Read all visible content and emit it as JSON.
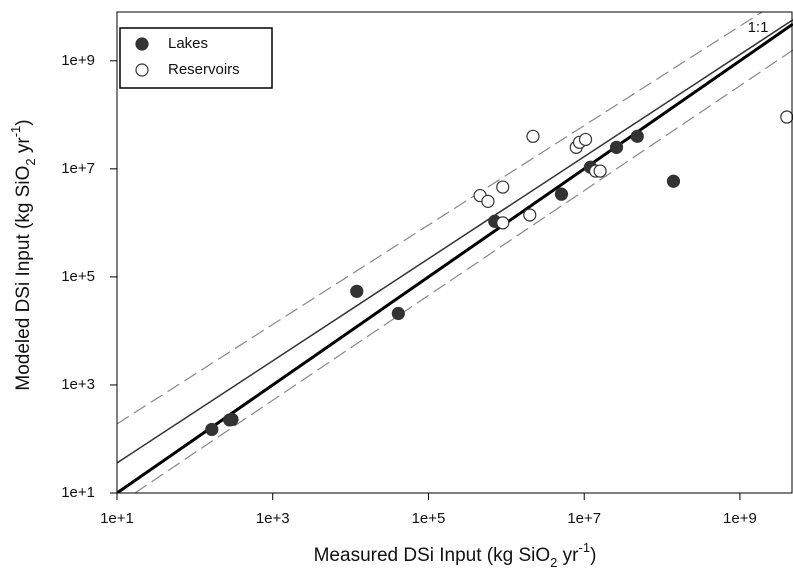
{
  "chart_data": {
    "type": "scatter",
    "xlabel": [
      "Measured DSi Input (kg SiO",
      "2",
      " yr",
      "-1",
      ")"
    ],
    "ylabel": [
      "Modeled DSi Input (kg SiO",
      "2",
      " yr",
      "-1",
      ")"
    ],
    "xscale": "log",
    "yscale": "log",
    "xlim": [
      10,
      4800000000
    ],
    "ylim": [
      10,
      8000000000
    ],
    "xticks": [
      {
        "value": 10,
        "label": "1e+1"
      },
      {
        "value": 1000,
        "label": "1e+3"
      },
      {
        "value": 100000,
        "label": "1e+5"
      },
      {
        "value": 10000000,
        "label": "1e+7"
      },
      {
        "value": 1000000000,
        "label": "1e+9"
      }
    ],
    "yticks": [
      {
        "value": 10,
        "label": "1e+1"
      },
      {
        "value": 1000,
        "label": "1e+3"
      },
      {
        "value": 100000,
        "label": "1e+5"
      },
      {
        "value": 10000000,
        "label": "1e+7"
      },
      {
        "value": 1000000000,
        "label": "1e+9"
      }
    ],
    "legend": "top-left",
    "annotations": [
      "1:1"
    ],
    "series": [
      {
        "name": "Lakes",
        "color": "#333333",
        "filled": true,
        "x": [
          165,
          280,
          300,
          12000,
          41000,
          710000,
          5100000,
          12000000,
          26000000,
          48000000,
          140000000
        ],
        "values": [
          150,
          225,
          230,
          54000,
          21000,
          1070000,
          3400000,
          10700000,
          25000000,
          40000000,
          5900000
        ]
      },
      {
        "name": "Reservoirs",
        "color": "#333333",
        "filled": false,
        "x": [
          460000,
          580000,
          900000,
          900000,
          2000000,
          2200000,
          7900000,
          8700000,
          10400000,
          14000000,
          16000000,
          4000000000
        ],
        "values": [
          3200000,
          2500000,
          4600000,
          1000000,
          1400000,
          40000000,
          25000000,
          31000000,
          35000000,
          9100000,
          9100000,
          91000000
        ]
      }
    ],
    "lines": [
      {
        "style": "solid",
        "width": 3,
        "color": "#000000",
        "x": [
          10,
          4800000000
        ],
        "values": [
          10,
          4800000000
        ]
      },
      {
        "style": "solid",
        "width": 1.5,
        "color": "#333333",
        "x": [
          10,
          4800000000
        ],
        "values": [
          36,
          5750000000
        ]
      },
      {
        "style": "dashed",
        "width": 1.2,
        "color": "#888888",
        "x": [
          10,
          4800000000
        ],
        "values": [
          190,
          18600000000
        ]
      },
      {
        "style": "dashed",
        "width": 1.2,
        "color": "#888888",
        "x": [
          17,
          4800000000
        ],
        "values": [
          10,
          1580000000
        ]
      }
    ]
  }
}
